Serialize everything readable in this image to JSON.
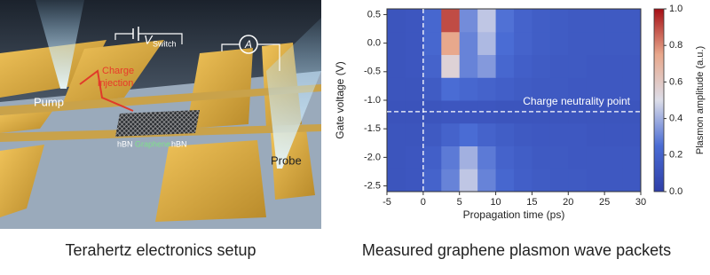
{
  "left_panel": {
    "caption": "Terahertz electronics setup",
    "labels": {
      "pump": "Pump",
      "probe": "Probe",
      "charge": "Charge",
      "injection": "injection",
      "v": "V",
      "switch": "Switch",
      "ammeter": "A",
      "hbn_left": "hBN",
      "graphene": "Graphene",
      "hbn_right": "hBN"
    }
  },
  "chart_data": {
    "type": "heatmap",
    "title": "Measured graphene plasmon wave packets",
    "x_label": "Propagation time (ps)",
    "y_label": "Gate voltage (V)",
    "colorbar_label": "Plasmon amplitude (a.u.)",
    "annotation": "Charge neutrality point",
    "hline": -1.2,
    "vline": 0,
    "xlim": [
      -5,
      30
    ],
    "ylim": [
      -2.6,
      0.6
    ],
    "xticks": [
      -5,
      0,
      5,
      10,
      15,
      20,
      25,
      30
    ],
    "yticks": [
      {
        "value": -2.5,
        "label": "-2.5"
      },
      {
        "value": -2,
        "label": "-2.0"
      },
      {
        "value": -1.5,
        "label": "-1.5"
      },
      {
        "value": -1,
        "label": "-1.0"
      },
      {
        "value": -0.5,
        "label": "-0.5"
      },
      {
        "value": 0,
        "label": "0.0"
      },
      {
        "value": 0.5,
        "label": "0.5"
      }
    ],
    "zlim": [
      0,
      1
    ],
    "zticks": [
      {
        "value": 0,
        "label": "0.0"
      },
      {
        "value": 0.2,
        "label": "0.2"
      },
      {
        "value": 0.4,
        "label": "0.4"
      },
      {
        "value": 0.6,
        "label": "0.6"
      },
      {
        "value": 0.8,
        "label": "0.8"
      },
      {
        "value": 1,
        "label": "1.0"
      }
    ],
    "colorscale": [
      "#2f3fa8",
      "#4a6cd4",
      "#dcdde8",
      "#e8a88c",
      "#a50f15"
    ],
    "x_edges": [
      -5,
      -2.5,
      0,
      2.5,
      5,
      7.5,
      10,
      12.5,
      15,
      17.5,
      20,
      22.5,
      25,
      27.5,
      30
    ],
    "y_edges": [
      -2.6,
      -2.2,
      -1.8,
      -1.4,
      -1.0,
      -0.6,
      -0.2,
      0.2,
      0.6
    ],
    "z": [
      [
        0.12,
        0.13,
        0.2,
        0.3,
        0.45,
        0.3,
        0.22,
        0.18,
        0.16,
        0.15,
        0.15,
        0.14,
        0.14,
        0.14
      ],
      [
        0.12,
        0.13,
        0.18,
        0.28,
        0.4,
        0.28,
        0.2,
        0.17,
        0.15,
        0.15,
        0.14,
        0.14,
        0.14,
        0.14
      ],
      [
        0.12,
        0.12,
        0.15,
        0.2,
        0.25,
        0.2,
        0.17,
        0.15,
        0.14,
        0.14,
        0.14,
        0.13,
        0.13,
        0.13
      ],
      [
        0.11,
        0.11,
        0.12,
        0.13,
        0.13,
        0.13,
        0.12,
        0.12,
        0.12,
        0.12,
        0.12,
        0.12,
        0.12,
        0.12
      ],
      [
        0.12,
        0.12,
        0.16,
        0.25,
        0.22,
        0.2,
        0.18,
        0.16,
        0.15,
        0.15,
        0.14,
        0.14,
        0.14,
        0.14
      ],
      [
        0.12,
        0.13,
        0.2,
        0.55,
        0.3,
        0.35,
        0.22,
        0.18,
        0.16,
        0.15,
        0.15,
        0.14,
        0.14,
        0.14
      ],
      [
        0.12,
        0.13,
        0.22,
        0.75,
        0.3,
        0.42,
        0.25,
        0.2,
        0.17,
        0.16,
        0.15,
        0.15,
        0.15,
        0.15
      ],
      [
        0.12,
        0.13,
        0.22,
        0.9,
        0.32,
        0.45,
        0.26,
        0.2,
        0.17,
        0.16,
        0.15,
        0.15,
        0.15,
        0.15
      ]
    ]
  }
}
